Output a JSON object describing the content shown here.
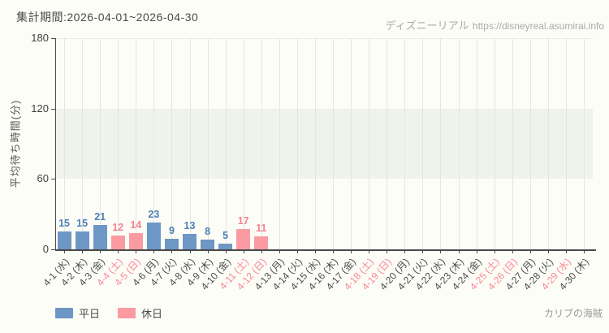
{
  "header": {
    "period_label": "集計期間:2026-04-01~2026-04-30",
    "watermark_brand": "ディズニーリアル",
    "watermark_url": "https://disneyreal.asumirai.info"
  },
  "footer": {
    "attraction_name": "カリブの海賊"
  },
  "colors": {
    "weekday_bar": "#6d97c5",
    "weekday_value_label": "#4d7fb5",
    "holiday_bar": "#f99ba1",
    "holiday_value_label": "#f5838d",
    "holiday_axis_label": "#f8868f",
    "weekday_axis_label": "#4a4a4a",
    "axis": "#4a4a4a",
    "grid": "#e4e6e0",
    "band": "#f0f2ec"
  },
  "chart_data": {
    "type": "bar",
    "title": "集計期間:2026-04-01~2026-04-30",
    "xlabel": "",
    "ylabel": "平均待ち時間(分)",
    "ylim": [
      0,
      180
    ],
    "yticks": [
      0,
      60,
      120,
      180
    ],
    "shaded_band_y": [
      60,
      120
    ],
    "grid": "vertical-per-day",
    "legend_position": "bottom-left",
    "legend": [
      {
        "label": "平日",
        "key": "weekday"
      },
      {
        "label": "休日",
        "key": "holiday"
      }
    ],
    "days": [
      {
        "date": "4-1",
        "dow": "水",
        "value": 15,
        "holiday": false
      },
      {
        "date": "4-2",
        "dow": "木",
        "value": 15,
        "holiday": false
      },
      {
        "date": "4-3",
        "dow": "金",
        "value": 21,
        "holiday": false
      },
      {
        "date": "4-4",
        "dow": "土",
        "value": 12,
        "holiday": true
      },
      {
        "date": "4-5",
        "dow": "日",
        "value": 14,
        "holiday": true
      },
      {
        "date": "4-6",
        "dow": "月",
        "value": 23,
        "holiday": false
      },
      {
        "date": "4-7",
        "dow": "火",
        "value": 9,
        "holiday": false
      },
      {
        "date": "4-8",
        "dow": "水",
        "value": 13,
        "holiday": false
      },
      {
        "date": "4-9",
        "dow": "木",
        "value": 8,
        "holiday": false
      },
      {
        "date": "4-10",
        "dow": "金",
        "value": 5,
        "holiday": false
      },
      {
        "date": "4-11",
        "dow": "土",
        "value": 17,
        "holiday": true
      },
      {
        "date": "4-12",
        "dow": "日",
        "value": 11,
        "holiday": true
      },
      {
        "date": "4-13",
        "dow": "月",
        "value": null,
        "holiday": false
      },
      {
        "date": "4-14",
        "dow": "火",
        "value": null,
        "holiday": false
      },
      {
        "date": "4-15",
        "dow": "水",
        "value": null,
        "holiday": false
      },
      {
        "date": "4-16",
        "dow": "木",
        "value": null,
        "holiday": false
      },
      {
        "date": "4-17",
        "dow": "金",
        "value": null,
        "holiday": false
      },
      {
        "date": "4-18",
        "dow": "土",
        "value": null,
        "holiday": true
      },
      {
        "date": "4-19",
        "dow": "日",
        "value": null,
        "holiday": true
      },
      {
        "date": "4-20",
        "dow": "月",
        "value": null,
        "holiday": false
      },
      {
        "date": "4-21",
        "dow": "火",
        "value": null,
        "holiday": false
      },
      {
        "date": "4-22",
        "dow": "水",
        "value": null,
        "holiday": false
      },
      {
        "date": "4-23",
        "dow": "木",
        "value": null,
        "holiday": false
      },
      {
        "date": "4-24",
        "dow": "金",
        "value": null,
        "holiday": false
      },
      {
        "date": "4-25",
        "dow": "土",
        "value": null,
        "holiday": true
      },
      {
        "date": "4-26",
        "dow": "日",
        "value": null,
        "holiday": true
      },
      {
        "date": "4-27",
        "dow": "月",
        "value": null,
        "holiday": false
      },
      {
        "date": "4-28",
        "dow": "火",
        "value": null,
        "holiday": false
      },
      {
        "date": "4-29",
        "dow": "水",
        "value": null,
        "holiday": true
      },
      {
        "date": "4-30",
        "dow": "木",
        "value": null,
        "holiday": false
      }
    ]
  }
}
